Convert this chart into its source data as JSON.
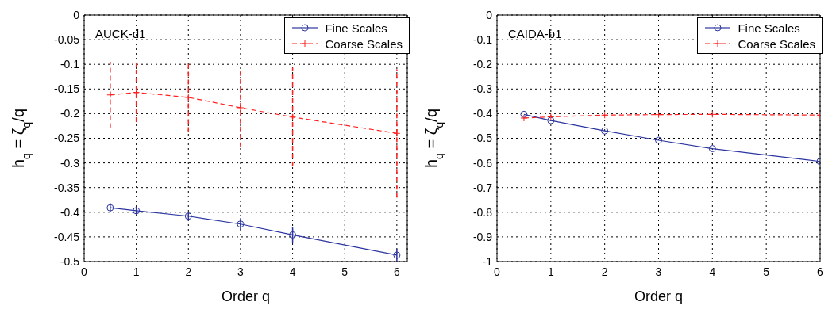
{
  "chart_data": [
    {
      "type": "line",
      "annotations": [
        "AUCK-d1"
      ],
      "xlabel": "Order q",
      "ylabel": "h$_{q}$ = ζ$_{q}$/q",
      "xlim": [
        0,
        6.2
      ],
      "xticks": [
        0,
        1,
        2,
        3,
        4,
        5,
        6
      ],
      "ylim": [
        -0.5,
        0
      ],
      "yticks": [
        -0.5,
        -0.45,
        -0.4,
        -0.35,
        -0.3,
        -0.25,
        -0.2,
        -0.15,
        -0.1,
        -0.05,
        0
      ],
      "grid": true,
      "legend": "top right",
      "x": [
        0.5,
        1,
        2,
        3,
        4,
        6
      ],
      "series": [
        {
          "name": "Fine Scales",
          "color": "#2b35a0",
          "marker": "circle",
          "line_style": "solid",
          "values": [
            -0.391,
            -0.397,
            -0.408,
            -0.424,
            -0.446,
            -0.487
          ],
          "errors": [
            0.009,
            0.008,
            0.009,
            0.012,
            0.016,
            0.013
          ]
        },
        {
          "name": "Coarse Scales",
          "color": "#ff2020",
          "marker": "cross",
          "line_style": "dashed",
          "values": [
            -0.162,
            -0.157,
            -0.167,
            -0.188,
            -0.207,
            -0.24
          ],
          "errors": [
            0.067,
            0.06,
            0.07,
            0.08,
            0.1,
            0.13
          ]
        }
      ]
    },
    {
      "type": "line",
      "annotations": [
        "CAIDA-b1"
      ],
      "xlabel": "Order q",
      "ylabel": "h$_{q}$ = ζ$_{q}$/q",
      "xlim": [
        0,
        6
      ],
      "xticks": [
        0,
        1,
        2,
        3,
        4,
        5,
        6
      ],
      "ylim": [
        -1,
        0
      ],
      "yticks": [
        -1,
        -0.9,
        -0.8,
        -0.7,
        -0.6,
        -0.5,
        -0.4,
        -0.3,
        -0.2,
        -0.1,
        0
      ],
      "grid": true,
      "legend": "top right",
      "x": [
        0.5,
        1,
        2,
        3,
        4,
        6
      ],
      "series": [
        {
          "name": "Fine Scales",
          "color": "#2b35a0",
          "marker": "circle",
          "line_style": "solid",
          "values": [
            -0.403,
            -0.428,
            -0.47,
            -0.508,
            -0.542,
            -0.594
          ]
        },
        {
          "name": "Coarse Scales",
          "color": "#ff2020",
          "marker": "cross",
          "line_style": "dashed",
          "values": [
            -0.418,
            -0.413,
            -0.406,
            -0.404,
            -0.403,
            -0.406
          ]
        }
      ]
    }
  ]
}
